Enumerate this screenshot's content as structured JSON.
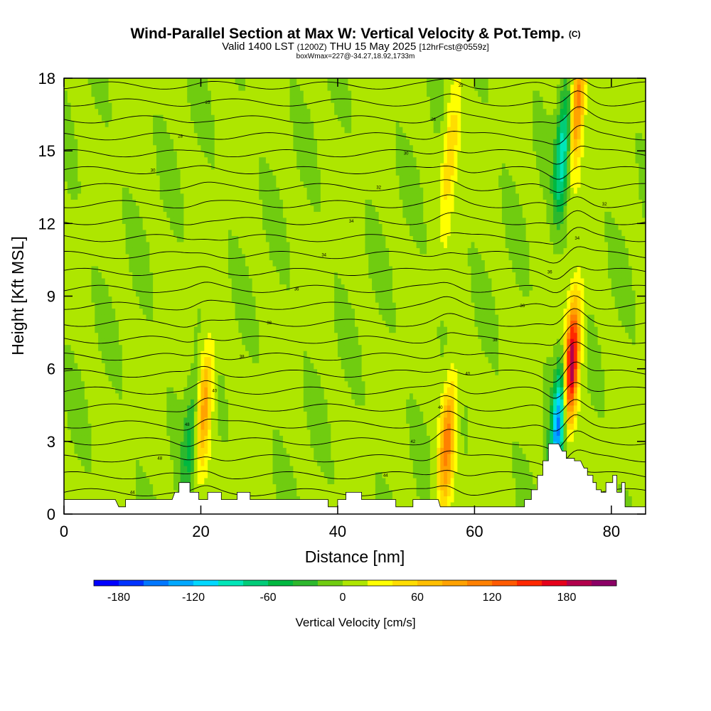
{
  "header": {
    "title": "Wind-Parallel Section at Max W: Vertical Velocity & Pot.Temp.",
    "copyright": "(C)",
    "valid_main": "Valid 1400 LST",
    "valid_utc": "(1200Z)",
    "valid_date": "THU 15 May 2025",
    "forecast_info": "[12hrFcst@0559z]",
    "box_info": "boxWmax=227@-34.27,18.92,1733m"
  },
  "chart_data": {
    "type": "heatmap",
    "title": "Wind-Parallel Section at Max W: Vertical Velocity & Pot.Temp.",
    "xlabel": "Distance [nm]",
    "ylabel": "Height [Kft MSL]",
    "xlim": [
      0,
      85
    ],
    "ylim": [
      0,
      18
    ],
    "x_ticks": [
      0,
      20,
      40,
      60,
      80
    ],
    "y_ticks": [
      0,
      3,
      6,
      9,
      12,
      15,
      18
    ],
    "colorbar": {
      "title": "Vertical Velocity [cm/s]",
      "levels": [
        -200,
        -180,
        -160,
        -140,
        -120,
        -100,
        -80,
        -60,
        -40,
        -20,
        0,
        20,
        40,
        60,
        80,
        100,
        120,
        140,
        160,
        180,
        200,
        220
      ],
      "tick_values": [
        -180,
        -120,
        -60,
        0,
        60,
        120,
        180
      ],
      "tick_labels": [
        "-180",
        "-120",
        "-60",
        "0",
        "60",
        "120",
        "180"
      ],
      "colors": [
        "#0000ff",
        "#0033ff",
        "#0077ff",
        "#00a8ff",
        "#00d8ff",
        "#00e6b8",
        "#00cc78",
        "#00b840",
        "#2db82d",
        "#70cc10",
        "#aee600",
        "#ffff00",
        "#ffdd00",
        "#ffbf00",
        "#ffa200",
        "#ff8000",
        "#ff5a00",
        "#ff2800",
        "#e6001a",
        "#b3004c",
        "#8c0066"
      ]
    },
    "updraft_bands": [
      {
        "x_center": 20.5,
        "peak_height": 4.5,
        "peak_w": 90
      },
      {
        "x_center": 56,
        "peak_height": 3,
        "peak_w": 110
      },
      {
        "x_center": 56.5,
        "peak_height": 15,
        "peak_w": 60
      },
      {
        "x_center": 74,
        "peak_height": 6,
        "peak_w": 227
      },
      {
        "x_center": 75,
        "peak_height": 17,
        "peak_w": 120
      }
    ],
    "downdraft_bands": [
      {
        "x_center": 18.5,
        "peak_height": 3,
        "peak_w": -50
      },
      {
        "x_center": 72.5,
        "peak_height": 4,
        "peak_w": -180
      },
      {
        "x_center": 73,
        "peak_height": 15,
        "peak_w": -110
      }
    ],
    "isentrope_labels": [
      "44",
      "44",
      "48",
      "42",
      "48",
      "40",
      "40",
      "40",
      "38",
      "38",
      "38",
      "36",
      "36",
      "36",
      "34",
      "34",
      "34",
      "32",
      "32",
      "30",
      "30",
      "28",
      "26",
      "25",
      "25"
    ],
    "terrain_heights": [
      [
        0,
        0.6
      ],
      [
        7.5,
        0.6
      ],
      [
        8,
        0.3
      ],
      [
        9,
        0.3
      ],
      [
        9,
        0.6
      ],
      [
        15.8,
        0.6
      ],
      [
        16.2,
        0.9
      ],
      [
        16.8,
        0.9
      ],
      [
        16.8,
        1.3
      ],
      [
        18.4,
        1.3
      ],
      [
        18.4,
        0.9
      ],
      [
        19.7,
        0.9
      ],
      [
        19.7,
        0.6
      ],
      [
        21,
        0.6
      ],
      [
        21,
        0.9
      ],
      [
        23,
        0.9
      ],
      [
        23,
        0.6
      ],
      [
        25.3,
        0.6
      ],
      [
        25.3,
        0.9
      ],
      [
        27.2,
        0.9
      ],
      [
        27.2,
        0.6
      ],
      [
        38.6,
        0.6
      ],
      [
        38.6,
        0.3
      ],
      [
        40,
        0.3
      ],
      [
        40,
        0.6
      ],
      [
        41.2,
        0.6
      ],
      [
        41.2,
        0.9
      ],
      [
        43.5,
        0.9
      ],
      [
        43.5,
        0.6
      ],
      [
        48.5,
        0.6
      ],
      [
        48.5,
        0.3
      ],
      [
        51,
        0.3
      ],
      [
        51,
        0.6
      ],
      [
        54.7,
        0.6
      ],
      [
        55,
        0.3
      ],
      [
        67.3,
        0.3
      ],
      [
        67.3,
        0.6
      ],
      [
        68.3,
        0.6
      ],
      [
        68.3,
        1.0
      ],
      [
        69.2,
        1.0
      ],
      [
        69.2,
        1.6
      ],
      [
        70,
        1.6
      ],
      [
        70,
        2.2
      ],
      [
        70.8,
        2.2
      ],
      [
        70.8,
        2.9
      ],
      [
        72.3,
        2.9
      ],
      [
        72.8,
        2.6
      ],
      [
        73.4,
        2.6
      ],
      [
        73.4,
        2.3
      ],
      [
        74.6,
        2.3
      ],
      [
        74.6,
        2.2
      ],
      [
        75.5,
        2.2
      ],
      [
        76,
        1.9
      ],
      [
        76.5,
        1.9
      ],
      [
        76.5,
        1.6
      ],
      [
        77.3,
        1.6
      ],
      [
        77.3,
        1.3
      ],
      [
        77.8,
        1.3
      ],
      [
        77.8,
        1.0
      ],
      [
        78.5,
        1.0
      ],
      [
        78.5,
        0.9
      ],
      [
        79.2,
        0.9
      ],
      [
        79.2,
        1.3
      ],
      [
        80.2,
        1.3
      ],
      [
        80.2,
        1.6
      ],
      [
        80.8,
        1.6
      ],
      [
        80.8,
        0.9
      ],
      [
        81.5,
        0.9
      ],
      [
        81.5,
        1.3
      ],
      [
        82,
        1.3
      ],
      [
        82,
        0.3
      ],
      [
        85,
        0.3
      ]
    ]
  }
}
